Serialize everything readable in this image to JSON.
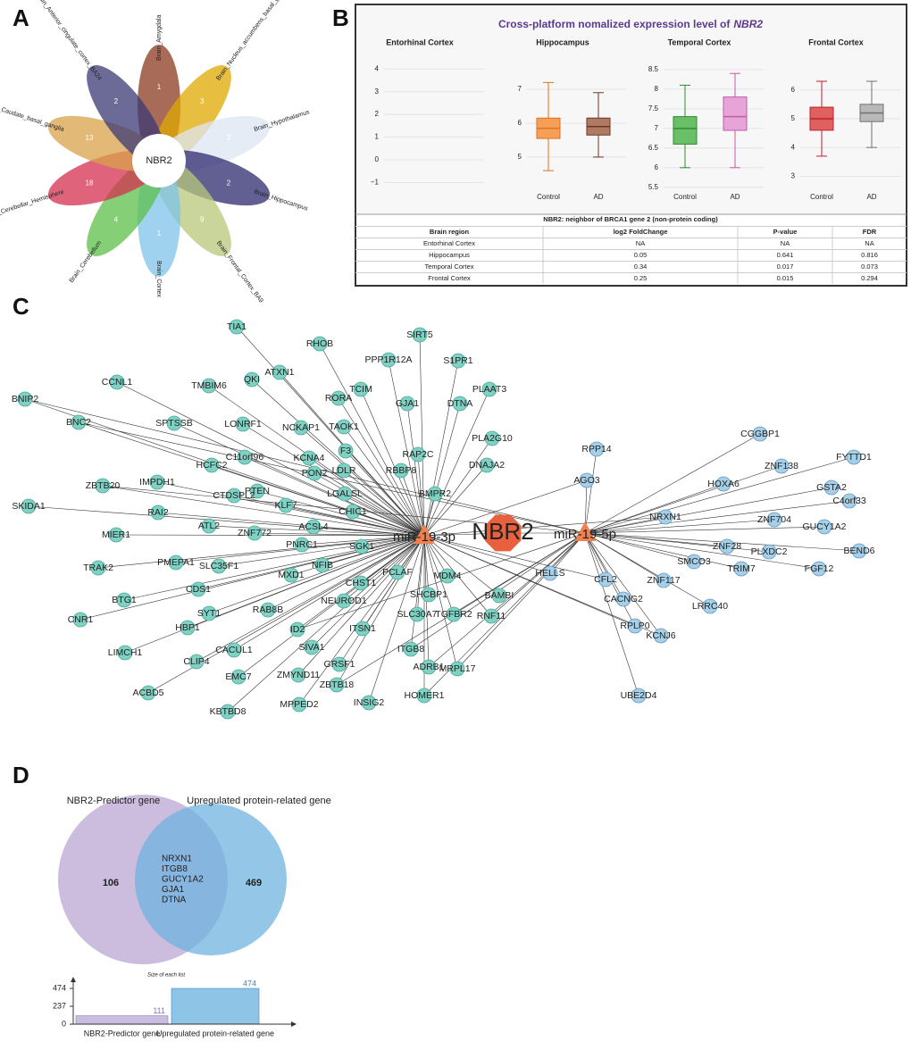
{
  "panel_labels": [
    "A",
    "B",
    "C",
    "D"
  ],
  "flower": {
    "center": "NBR2",
    "petals": [
      {
        "name": "Brain_Amygdala",
        "count": 1,
        "color": "#8b3a1f"
      },
      {
        "name": "Brain_Nucleus_accumbens_basal_ganglia",
        "count": 3,
        "color": "#e0a800"
      },
      {
        "name": "Brain_Hypothalamus",
        "count": 2,
        "color": "#dde6f2"
      },
      {
        "name": "Brain_Hippocampus",
        "count": 2,
        "color": "#2e2a6e"
      },
      {
        "name": "Brain_Frontal_Cortex_BA9",
        "count": 9,
        "color": "#b8c77a"
      },
      {
        "name": "Brain_Cortex",
        "count": 1,
        "color": "#7ec3e8"
      },
      {
        "name": "Brain_Cerebellum",
        "count": 4,
        "color": "#5cbf4a"
      },
      {
        "name": "Brain_Cerebellar_Hemisphere",
        "count": 18,
        "color": "#d4304f"
      },
      {
        "name": "Brain_Caudate_basal_ganglia",
        "count": 13,
        "color": "#d8a24a"
      },
      {
        "name": "Brain_Anterior_cingulate_cortex_BA24",
        "count": 2,
        "color": "#3b3a75"
      }
    ]
  },
  "expression": {
    "title": "Cross-platform nomalized expression level of",
    "title_gene": "NBR2",
    "regions": [
      {
        "name": "Entorhinal Cortex",
        "ylim": [
          -1.3,
          4.6
        ],
        "yticks": [
          {
            "value": -1,
            "label": "−1"
          },
          0,
          1,
          2,
          3,
          4
        ],
        "groups": []
      },
      {
        "name": "Hippocampus",
        "ylim": [
          4.05,
          8.0
        ],
        "yticks": [
          5,
          6,
          7
        ],
        "groups": [
          {
            "name": "Control",
            "color": "#f5a05a",
            "edge": "#e0701a",
            "low": 4.6,
            "q1": 5.55,
            "median": 5.85,
            "q3": 6.15,
            "high": 7.2
          },
          {
            "name": "AD",
            "color": "#b07a62",
            "edge": "#6e3526",
            "low": 5.0,
            "q1": 5.65,
            "median": 5.9,
            "q3": 6.15,
            "high": 6.9
          }
        ]
      },
      {
        "name": "Temporal Cortex",
        "ylim": [
          5.45,
          8.86
        ],
        "yticks": [
          5.5,
          6,
          6.5,
          7,
          7.5,
          8,
          8.5
        ],
        "groups": [
          {
            "name": "Control",
            "color": "#6abf69",
            "edge": "#2e8b2e",
            "low": 6.0,
            "q1": 6.6,
            "median": 7.0,
            "q3": 7.3,
            "high": 8.1
          },
          {
            "name": "AD",
            "color": "#e7a4d6",
            "edge": "#c45aab",
            "low": 6.0,
            "q1": 6.95,
            "median": 7.3,
            "q3": 7.8,
            "high": 8.4
          }
        ]
      },
      {
        "name": "Frontal Cortex",
        "ylim": [
          2.55,
          7.2
        ],
        "yticks": [
          3,
          4,
          5,
          6
        ],
        "groups": [
          {
            "name": "Control",
            "color": "#e06060",
            "edge": "#c0202a",
            "low": 3.7,
            "q1": 4.6,
            "median": 5.0,
            "q3": 5.4,
            "high": 6.3
          },
          {
            "name": "AD",
            "color": "#b8b8b8",
            "edge": "#707070",
            "low": 4.0,
            "q1": 4.9,
            "median": 5.2,
            "q3": 5.5,
            "high": 6.3
          }
        ]
      }
    ]
  },
  "table": {
    "caption": "NBR2: neighbor of BRCA1 gene 2 (non-protein coding)",
    "header": [
      "Brain region",
      "log2 FoldChange",
      "P-value",
      "FDR"
    ],
    "rows": [
      [
        "Entorhinal Cortex",
        "NA",
        "NA",
        "NA"
      ],
      [
        "Hippocampus",
        0.05,
        0.641,
        0.816
      ],
      [
        "Temporal Cortex",
        0.34,
        0.017,
        0.073
      ],
      [
        "Frontal Cortex",
        0.25,
        0.015,
        0.294
      ]
    ]
  },
  "network": {
    "hub": "NBR2",
    "mirnas": [
      "miR-19-3p",
      "miR-19-5p"
    ],
    "gene_groups": [
      {
        "color": "#7fd1c3",
        "edge": "#4aa897",
        "genes": [
          "TIA1",
          "SIRT5",
          "RHOB",
          "PPP1R12A",
          "S1PR1",
          "ATXN1",
          "QKI",
          "TMBIM6",
          "CCNL1",
          "TCIM",
          "PLAAT3",
          "BNIP2",
          "RORA",
          "GJA1",
          "DTNA",
          "LONRF1",
          "NCKAP1",
          "TAOK1",
          "SPTSSB",
          "BNC2",
          "PLA2G10",
          "F3",
          "C11orf96",
          "KCNA4",
          "RAP2C",
          "HCFC2",
          "RBBP8",
          "DNAJA2",
          "PON2",
          "LDLR",
          "IMPDH1",
          "ZBTB20",
          "PTEN",
          "LGALSL",
          "CTDSPL2",
          "BMPR2",
          "KLF7",
          "CHIC1",
          "SKIDA1",
          "RAI2",
          "ATL2",
          "ACSL4",
          "ZNF772",
          "MIER1",
          "SGK1",
          "PNRC1",
          "TRAK2",
          "PMEPA1",
          "NFIB",
          "SLC35F1",
          "MXD1",
          "PCLAF",
          "MDM4",
          "CDS1",
          "CHST1",
          "SHCBP1",
          "BTG1",
          "NEUROD1",
          "BAMBI",
          "CNR1",
          "RAB8B",
          "SYT1",
          "TGFBR2",
          "RNF11",
          "SLC30A7",
          "HBP1",
          "ID2",
          "ITSN1",
          "LIMCH1",
          "CACUL1",
          "ITGB8",
          "SIVA1",
          "GRSF1",
          "ADRB1",
          "CLIP4",
          "EMC7",
          "ZMYND11",
          "HOMER1",
          "MRPL17",
          "ZBTB18",
          "ACBD5",
          "KBTBD8",
          "MPPED2",
          "INSIG2"
        ]
      },
      {
        "color": "#a6cfe8",
        "edge": "#5f97c4",
        "genes": [
          "CGGBP1",
          "RPP14",
          "FYTTD1",
          "ZNF138",
          "AGO3",
          "HOXA6",
          "GSTA2",
          "C4orf33",
          "NRXN1",
          "ZNF704",
          "GUCY1A2",
          "ZNF28",
          "PLXDC2",
          "BEND6",
          "SMCO3",
          "TRIM7",
          "FGF12",
          "HELLS",
          "CFL2",
          "ZNF117",
          "CACNG2",
          "LRRC40",
          "RPLP0",
          "KCNJ6",
          "UBE2D4"
        ]
      }
    ],
    "hub_color": "#e8603c",
    "mirna_color": "#f08050"
  },
  "venn": {
    "left_name": "NBR2-Predictor gene",
    "right_name": "Upregulated protein-related gene",
    "left_only": 106,
    "right_only": 469,
    "intersection": [
      "NRXN1",
      "ITGB8",
      "GUCY1A2",
      "GJA1",
      "DTNA"
    ],
    "left_color": "#c3b1d9",
    "right_color": "#6fb3df"
  },
  "list_sizes": {
    "title": "Size of each list",
    "categories": [
      "NBR2-Predictor gene",
      "Upregulated protein-related gene"
    ],
    "values": [
      111,
      474
    ],
    "colors": [
      "#c9bde0",
      "#8ec5e6"
    ],
    "label_colors": [
      "#8a78b8",
      "#3b86c4"
    ],
    "ylim": [
      0,
      474
    ],
    "yticks": [
      0,
      237,
      474
    ]
  }
}
